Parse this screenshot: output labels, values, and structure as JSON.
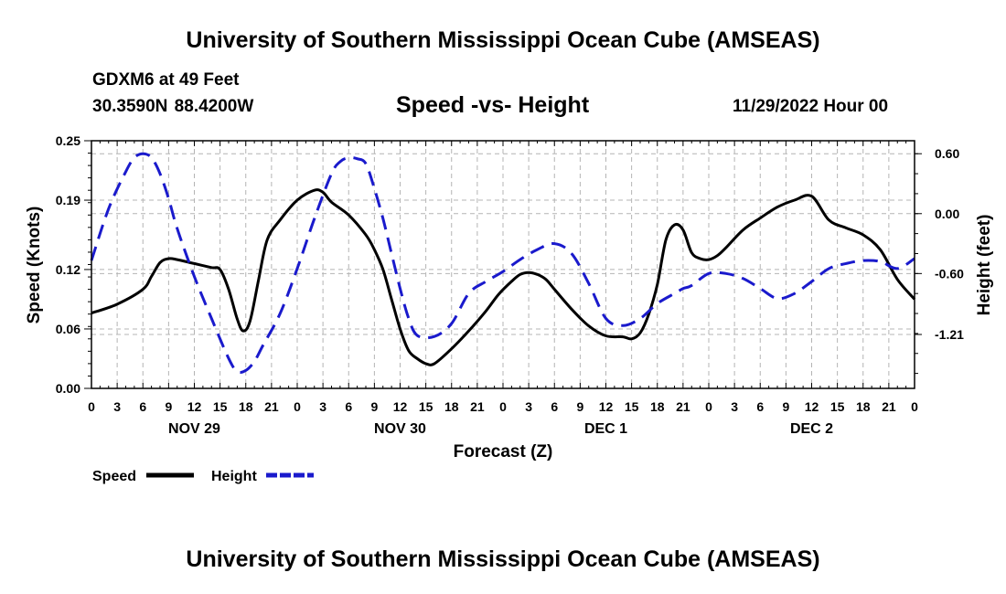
{
  "header": {
    "title": "University of Southern Mississippi Ocean Cube (AMSEAS)",
    "station": "GDXM6 at 49 Feet",
    "coordinates": "30.3590N   88.4200W",
    "subtitle": "Speed -vs- Height",
    "issued": "11/29/2022 Hour 00"
  },
  "footer": {
    "title": "University of Southern Mississippi Ocean Cube (AMSEAS)"
  },
  "chart_data": {
    "type": "line",
    "title": "Speed -vs- Height",
    "xlabel": "Forecast (Z)",
    "ylabel": "Speed (Knots)",
    "y2label": "Height (feet)",
    "x_unit": "hours from 11/29/2022 00Z",
    "xlim": [
      0,
      96
    ],
    "ylim": [
      0,
      0.25
    ],
    "y2lim": [
      -1.75,
      0.73
    ],
    "x_ticks": [
      0,
      3,
      6,
      9,
      12,
      15,
      18,
      21,
      24,
      27,
      30,
      33,
      36,
      39,
      42,
      45,
      48,
      51,
      54,
      57,
      60,
      63,
      66,
      69,
      72,
      75,
      78,
      81,
      84,
      87,
      90,
      93,
      96
    ],
    "x_tick_labels": [
      "0",
      "3",
      "6",
      "9",
      "12",
      "15",
      "18",
      "21",
      "0",
      "3",
      "6",
      "9",
      "12",
      "15",
      "18",
      "21",
      "0",
      "3",
      "6",
      "9",
      "12",
      "15",
      "18",
      "21",
      "0",
      "3",
      "6",
      "9",
      "12",
      "15",
      "18",
      "21",
      "0"
    ],
    "day_labels": [
      {
        "x": 12,
        "label": "NOV 29"
      },
      {
        "x": 36,
        "label": "NOV 30"
      },
      {
        "x": 60,
        "label": "DEC 1"
      },
      {
        "x": 84,
        "label": "DEC 2"
      }
    ],
    "y_ticks": [
      0.0,
      0.06,
      0.12,
      0.19,
      0.25
    ],
    "y_tick_labels": [
      "0.00",
      "0.06",
      "0.12",
      "0.19",
      "0.25"
    ],
    "y2_ticks": [
      0.6,
      0.0,
      -0.6,
      -1.21
    ],
    "y2_tick_labels": [
      "0.60",
      "0.00",
      "-0.60",
      "-1.21"
    ],
    "grid": true,
    "series": [
      {
        "name": "Speed",
        "axis": "left",
        "color": "#000000",
        "dash": "solid",
        "x": [
          0,
          3,
          6,
          7,
          8,
          9,
          10,
          12,
          14,
          15,
          16,
          17,
          17.7,
          18.5,
          19.5,
          20.5,
          22,
          24,
          26,
          27,
          28,
          30,
          32,
          33,
          34,
          35,
          36,
          37,
          38,
          39,
          40,
          42,
          44,
          46,
          47.5,
          49,
          50,
          51,
          52,
          53,
          54,
          56,
          58,
          60,
          62,
          63,
          64,
          65,
          66,
          67,
          68,
          69,
          70,
          71,
          72,
          73,
          74,
          76,
          78,
          80,
          82,
          84,
          86,
          88,
          90,
          92,
          94,
          96
        ],
        "values": [
          0.076,
          0.085,
          0.1,
          0.113,
          0.127,
          0.131,
          0.13,
          0.126,
          0.122,
          0.12,
          0.1,
          0.07,
          0.058,
          0.068,
          0.11,
          0.15,
          0.17,
          0.19,
          0.2,
          0.198,
          0.188,
          0.175,
          0.155,
          0.14,
          0.12,
          0.09,
          0.06,
          0.038,
          0.03,
          0.025,
          0.025,
          0.04,
          0.058,
          0.078,
          0.095,
          0.108,
          0.115,
          0.117,
          0.115,
          0.11,
          0.1,
          0.08,
          0.063,
          0.053,
          0.052,
          0.05,
          0.056,
          0.075,
          0.105,
          0.15,
          0.165,
          0.16,
          0.137,
          0.131,
          0.13,
          0.134,
          0.142,
          0.16,
          0.172,
          0.183,
          0.19,
          0.194,
          0.17,
          0.162,
          0.155,
          0.14,
          0.11,
          0.09
        ]
      },
      {
        "name": "Height",
        "axis": "right",
        "color": "#1a1acc",
        "dash": "dashed",
        "x": [
          0,
          2,
          4,
          5,
          6,
          7,
          8,
          9,
          10,
          12,
          14,
          16,
          17,
          18,
          19,
          20,
          22,
          24,
          26,
          28,
          29,
          30,
          31,
          32,
          33,
          34,
          35,
          36,
          37,
          38,
          40,
          42,
          44,
          46,
          48,
          50,
          52,
          54,
          56,
          58,
          60,
          62,
          64,
          66,
          68,
          69,
          70,
          72,
          74,
          76,
          78,
          80,
          82,
          84,
          86,
          88,
          90,
          92,
          94,
          96
        ],
        "values": [
          -0.47,
          0.05,
          0.42,
          0.56,
          0.6,
          0.56,
          0.4,
          0.15,
          -0.15,
          -0.63,
          -1.05,
          -1.45,
          -1.58,
          -1.57,
          -1.48,
          -1.32,
          -1.0,
          -0.55,
          -0.05,
          0.4,
          0.52,
          0.56,
          0.55,
          0.5,
          0.25,
          -0.05,
          -0.4,
          -0.75,
          -1.05,
          -1.22,
          -1.23,
          -1.1,
          -0.8,
          -0.68,
          -0.58,
          -0.46,
          -0.36,
          -0.3,
          -0.4,
          -0.7,
          -1.05,
          -1.12,
          -1.05,
          -0.9,
          -0.8,
          -0.75,
          -0.72,
          -0.6,
          -0.6,
          -0.65,
          -0.75,
          -0.85,
          -0.8,
          -0.68,
          -0.55,
          -0.5,
          -0.47,
          -0.48,
          -0.55,
          -0.45
        ]
      }
    ],
    "legend": {
      "placement": "bottom-left",
      "entries": [
        "Speed",
        "Height"
      ]
    }
  }
}
